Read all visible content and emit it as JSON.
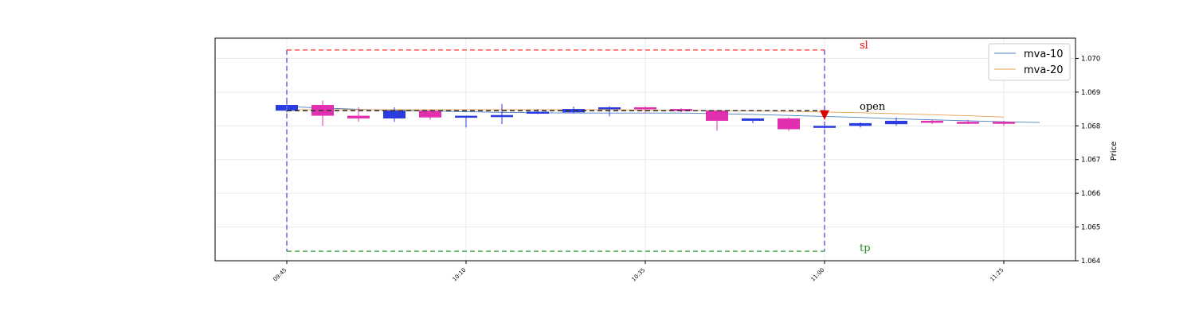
{
  "chart_data": {
    "type": "candlestick",
    "ylabel": "Price",
    "ylim": [
      1.064,
      1.0706
    ],
    "yticks": [
      1.064,
      1.065,
      1.066,
      1.067,
      1.068,
      1.069,
      1.07
    ],
    "ytick_labels": [
      "1.064",
      "1.065",
      "1.066",
      "1.067",
      "1.068",
      "1.069",
      "1.070"
    ],
    "xlim": [
      "09:35",
      "11:35"
    ],
    "xticks": [
      "09:45",
      "10:10",
      "10:35",
      "11:00",
      "11:25"
    ],
    "grid": true,
    "legend_position": "top-right",
    "colors": {
      "up": "#2a3be0",
      "down": "#e030b0",
      "sl": "#ff5555",
      "tp": "#44aa44",
      "open": "#333333",
      "box": "#6666dd",
      "marker": "#dd0000"
    },
    "candles": [
      {
        "t": "09:45",
        "o": 1.06845,
        "h": 1.0687,
        "l": 1.0684,
        "c": 1.06862
      },
      {
        "t": "09:50",
        "o": 1.06862,
        "h": 1.06875,
        "l": 1.068,
        "c": 1.0683
      },
      {
        "t": "09:55",
        "o": 1.0683,
        "h": 1.06855,
        "l": 1.06812,
        "c": 1.06822
      },
      {
        "t": "10:00",
        "o": 1.06822,
        "h": 1.06855,
        "l": 1.06812,
        "c": 1.06845
      },
      {
        "t": "10:05",
        "o": 1.06845,
        "h": 1.06848,
        "l": 1.06818,
        "c": 1.06825
      },
      {
        "t": "10:10",
        "o": 1.06825,
        "h": 1.0683,
        "l": 1.06795,
        "c": 1.0683
      },
      {
        "t": "10:15",
        "o": 1.06826,
        "h": 1.06865,
        "l": 1.06805,
        "c": 1.06832
      },
      {
        "t": "10:20",
        "o": 1.06836,
        "h": 1.0685,
        "l": 1.06835,
        "c": 1.06842
      },
      {
        "t": "10:25",
        "o": 1.0684,
        "h": 1.06857,
        "l": 1.06838,
        "c": 1.0685
      },
      {
        "t": "10:30",
        "o": 1.0685,
        "h": 1.06858,
        "l": 1.06828,
        "c": 1.06855
      },
      {
        "t": "10:35",
        "o": 1.06855,
        "h": 1.06858,
        "l": 1.06838,
        "c": 1.06852
      },
      {
        "t": "10:40",
        "o": 1.0685,
        "h": 1.06852,
        "l": 1.0684,
        "c": 1.06848
      },
      {
        "t": "10:45",
        "o": 1.06845,
        "h": 1.06847,
        "l": 1.06785,
        "c": 1.06815
      },
      {
        "t": "10:50",
        "o": 1.06815,
        "h": 1.06822,
        "l": 1.06808,
        "c": 1.06822
      },
      {
        "t": "10:55",
        "o": 1.06822,
        "h": 1.06825,
        "l": 1.06785,
        "c": 1.0679
      },
      {
        "t": "11:00",
        "o": 1.06795,
        "h": 1.068,
        "l": 1.06792,
        "c": 1.068
      },
      {
        "t": "11:05",
        "o": 1.068,
        "h": 1.0681,
        "l": 1.06795,
        "c": 1.06808
      },
      {
        "t": "11:10",
        "o": 1.06805,
        "h": 1.06825,
        "l": 1.068,
        "c": 1.06815
      },
      {
        "t": "11:15",
        "o": 1.06815,
        "h": 1.06818,
        "l": 1.06805,
        "c": 1.0681
      },
      {
        "t": "11:20",
        "o": 1.06812,
        "h": 1.06818,
        "l": 1.06805,
        "c": 1.0681
      },
      {
        "t": "11:25",
        "o": 1.06812,
        "h": 1.06815,
        "l": 1.068,
        "c": 1.0681
      }
    ],
    "series": [
      {
        "name": "mva-10",
        "color": "#4c7fbf",
        "x": [
          "09:45",
          "09:50",
          "09:55",
          "10:00",
          "10:05",
          "10:10",
          "10:15",
          "10:20",
          "10:25",
          "10:30",
          "10:35",
          "10:40",
          "10:45",
          "10:50",
          "10:55",
          "11:00",
          "11:05",
          "11:10",
          "11:15",
          "11:20",
          "11:25",
          "11:30"
        ],
        "values": [
          1.06857,
          1.06853,
          1.06849,
          1.06846,
          1.06844,
          1.06842,
          1.0684,
          1.06839,
          1.06838,
          1.06838,
          1.06838,
          1.06838,
          1.06836,
          1.06834,
          1.06831,
          1.06828,
          1.06825,
          1.06821,
          1.06818,
          1.06815,
          1.06812,
          1.0681
        ]
      },
      {
        "name": "mva-20",
        "color": "#e8a050",
        "x": [
          "09:45",
          "09:50",
          "09:55",
          "10:00",
          "10:05",
          "10:10",
          "10:15",
          "10:20",
          "10:25",
          "10:30",
          "10:35",
          "10:40",
          "10:45",
          "10:50",
          "10:55",
          "11:00",
          "11:05",
          "11:10",
          "11:15",
          "11:20",
          "11:25"
        ],
        "values": [
          1.06848,
          1.06848,
          1.06848,
          1.06848,
          1.06848,
          1.06848,
          1.06848,
          1.06848,
          1.06848,
          1.06848,
          1.06847,
          1.06846,
          1.06845,
          1.06844,
          1.06843,
          1.06841,
          1.06839,
          1.06836,
          1.06833,
          1.0683,
          1.06826
        ]
      }
    ],
    "trade_box": {
      "start": "09:45",
      "end": "11:00",
      "sl": 1.07025,
      "tp": 1.06428,
      "open": 1.06845
    },
    "signal_marker": {
      "t": "11:00",
      "price": 1.06832,
      "direction": "down"
    },
    "annotations": {
      "sl": "sl",
      "tp": "tp",
      "open": "open"
    }
  }
}
